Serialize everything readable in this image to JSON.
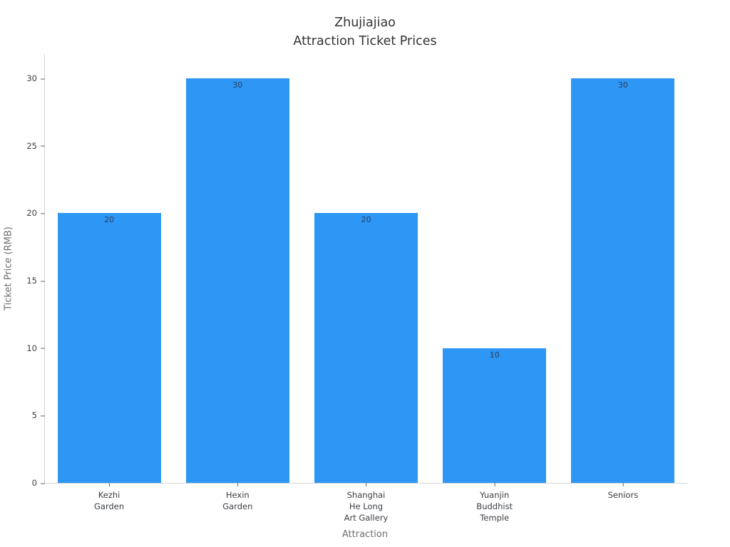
{
  "title": {
    "line1": "Zhujiajiao",
    "line2": "Attraction Ticket Prices"
  },
  "colors": {
    "background": "#ffffff",
    "bar": "#2e96f5",
    "axis_line": "#d4d4d4",
    "tick_mark": "#666666",
    "tick_text": "#3c3f44",
    "value_label_text": "#2a3f5f",
    "axis_title_text": "#6e6e6e",
    "title_text": "#333333"
  },
  "chart_data": {
    "type": "bar",
    "title": "Zhujiajiao Attraction Ticket Prices",
    "categories": [
      "Kezhi\nGarden",
      "Hexin\nGarden",
      "Shanghai\nHe Long\nArt Gallery",
      "Yuanjin\nBuddhist\nTemple",
      "Seniors"
    ],
    "values": [
      20,
      30,
      20,
      10,
      30
    ],
    "value_labels": [
      "20",
      "30",
      "20",
      "10",
      "30"
    ],
    "xlabel": "Attraction",
    "ylabel": "Ticket Price (RMB)",
    "ylim": [
      0,
      31.8
    ],
    "yticks": [
      0,
      5,
      10,
      15,
      20,
      25,
      30
    ],
    "grid": false,
    "legend": false,
    "value_label_position": "inside-top"
  }
}
